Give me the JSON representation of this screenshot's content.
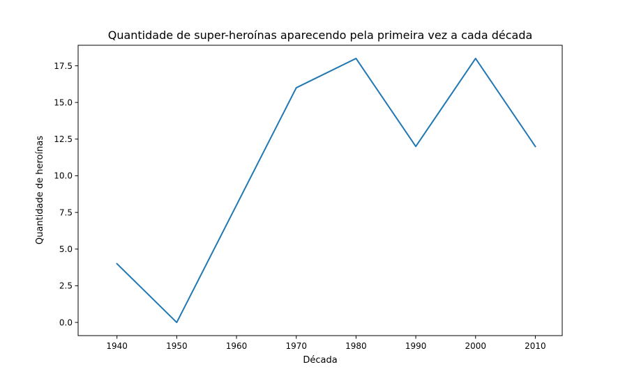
{
  "chart_data": {
    "type": "line",
    "title": "Quantidade de super-heroínas aparecendo pela primeira vez a cada década",
    "xlabel": "Década",
    "ylabel": "Quantidade de heroínas",
    "x": [
      1940,
      1950,
      1960,
      1970,
      1980,
      1990,
      2000,
      2010
    ],
    "xlim": [
      1933.5,
      2014.5
    ],
    "ylim": [
      -0.9,
      18.9
    ],
    "x_ticks": [
      1940,
      1950,
      1960,
      1970,
      1980,
      1990,
      2000,
      2010
    ],
    "x_tick_labels": [
      "1940",
      "1950",
      "1960",
      "1970",
      "1980",
      "1990",
      "2000",
      "2010"
    ],
    "y_ticks": [
      0,
      2.5,
      5,
      7.5,
      10,
      12.5,
      15,
      17.5
    ],
    "y_tick_labels": [
      "0.0",
      "2.5",
      "5.0",
      "7.5",
      "10.0",
      "12.5",
      "15.0",
      "17.5"
    ],
    "grid": false,
    "series": [
      {
        "values": [
          4,
          0,
          8,
          16,
          18,
          12,
          18,
          12
        ],
        "color": "#1f77b4"
      }
    ]
  }
}
